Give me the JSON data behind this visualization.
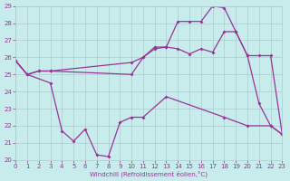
{
  "xlabel": "Windchill (Refroidissement éolien,°C)",
  "bg_color": "#c8ecec",
  "grid_color": "#aacccc",
  "line_color": "#993399",
  "xlim": [
    0,
    23
  ],
  "ylim": [
    20,
    29
  ],
  "yticks": [
    20,
    21,
    22,
    23,
    24,
    25,
    26,
    27,
    28,
    29
  ],
  "xticks": [
    0,
    1,
    2,
    3,
    4,
    5,
    6,
    7,
    8,
    9,
    10,
    11,
    12,
    13,
    14,
    15,
    16,
    17,
    18,
    19,
    20,
    21,
    22,
    23
  ],
  "line1_x": [
    0,
    1,
    3,
    4,
    5,
    6,
    7,
    8,
    9,
    10,
    11,
    13,
    18,
    20,
    22,
    23
  ],
  "line1_y": [
    25.8,
    25.0,
    24.5,
    21.7,
    21.1,
    21.8,
    20.3,
    20.2,
    22.2,
    22.5,
    22.5,
    23.7,
    22.5,
    22.0,
    22.0,
    21.5
  ],
  "line2_x": [
    0,
    1,
    2,
    3,
    10,
    11,
    12,
    13,
    14,
    15,
    16,
    17,
    18,
    19,
    20,
    21,
    22,
    23
  ],
  "line2_y": [
    25.8,
    25.0,
    25.2,
    25.2,
    25.0,
    26.0,
    26.6,
    26.6,
    28.1,
    28.1,
    28.1,
    29.0,
    28.9,
    27.5,
    26.1,
    26.1,
    26.1,
    21.5
  ],
  "line3_x": [
    0,
    1,
    2,
    3,
    10,
    11,
    12,
    13,
    14,
    15,
    16,
    17,
    18,
    19,
    20,
    21,
    22,
    23
  ],
  "line3_y": [
    25.8,
    25.0,
    25.2,
    25.2,
    25.7,
    26.0,
    26.5,
    26.6,
    26.5,
    26.2,
    26.5,
    26.3,
    27.5,
    27.5,
    26.1,
    23.3,
    22.0,
    21.5
  ]
}
